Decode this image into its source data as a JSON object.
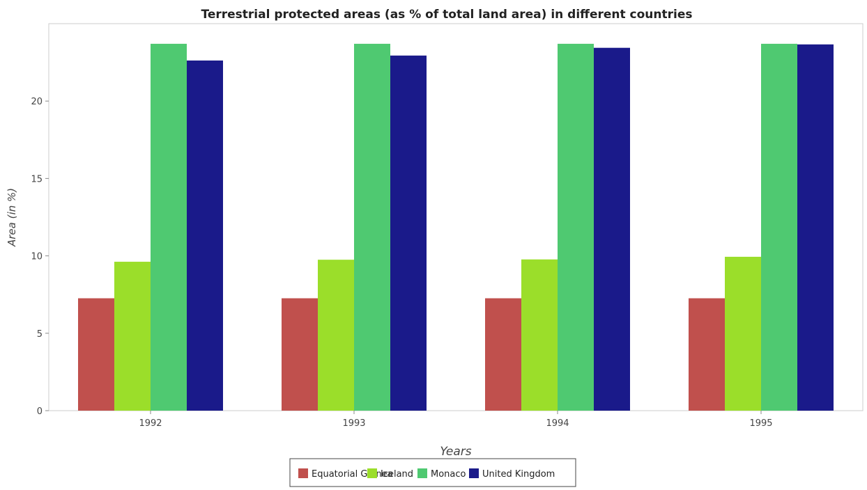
{
  "chart_data": {
    "type": "bar",
    "title": "Terrestrial protected areas (as % of total land area) in different countries",
    "xlabel": "Years",
    "ylabel": "Area (in %)",
    "categories": [
      "1992",
      "1993",
      "1994",
      "1995"
    ],
    "ylim": [
      0,
      25
    ],
    "yticks": [
      0,
      5,
      10,
      15,
      20
    ],
    "grid": false,
    "legend_position": "bottom-center",
    "series": [
      {
        "name": "Equatorial Guinea",
        "color": "#c0504d",
        "values": [
          7.26,
          7.26,
          7.26,
          7.26
        ]
      },
      {
        "name": "Iceland",
        "color": "#9bde2a",
        "values": [
          9.62,
          9.75,
          9.77,
          9.94
        ]
      },
      {
        "name": "Monaco",
        "color": "#4fc971",
        "values": [
          23.7,
          23.7,
          23.7,
          23.7
        ]
      },
      {
        "name": "United Kingdom",
        "color": "#1a1a8a",
        "values": [
          22.62,
          22.94,
          23.44,
          23.66
        ]
      }
    ]
  }
}
